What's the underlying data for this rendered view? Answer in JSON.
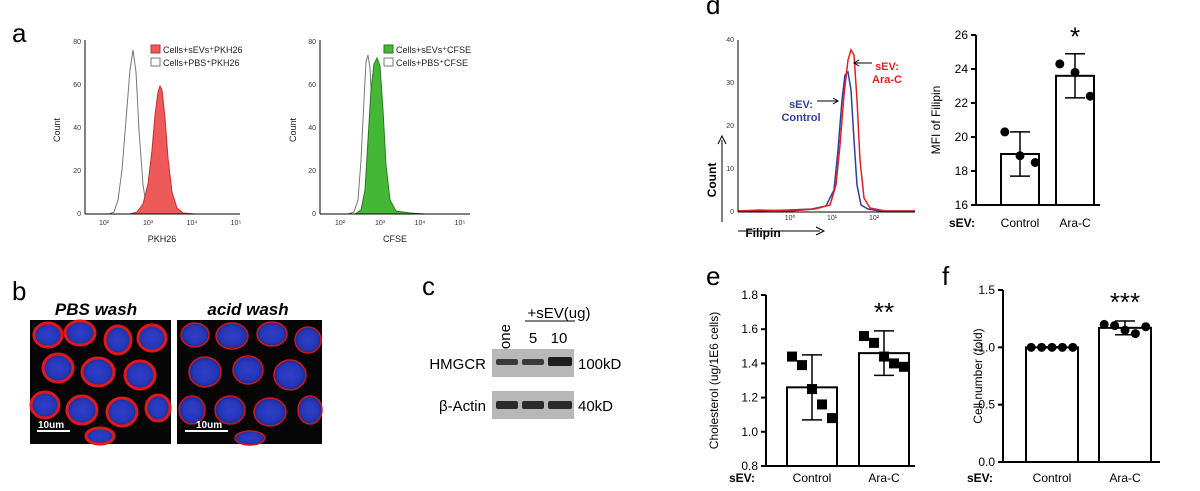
{
  "panels": {
    "a": "a",
    "b": "b",
    "c": "c",
    "d": "d",
    "e": "e",
    "f": "f"
  },
  "panel_a1": {
    "legend": [
      "Cells+sEVs⁺PKH26",
      "Cells+PBS⁺PKH26"
    ],
    "ylabel": "Count",
    "xlabel": "PKH26",
    "yticks": [
      "0",
      "20",
      "40",
      "60",
      "80"
    ],
    "xticks": [
      "10²",
      "10³",
      "10⁴",
      "10⁵"
    ],
    "colors": {
      "fill": "#ee5a5a",
      "edge": "#c23030"
    }
  },
  "panel_a2": {
    "legend": [
      "Cells+sEVs⁺CFSE",
      "Cells+PBS⁺CFSE"
    ],
    "ylabel": "Count",
    "xlabel": "CFSE",
    "yticks": [
      "0",
      "20",
      "40",
      "60",
      "80"
    ],
    "xticks": [
      "10²",
      "10³",
      "10⁴",
      "10⁵"
    ],
    "colors": {
      "fill": "#44b836",
      "edge": "#2a7a22"
    }
  },
  "panel_b": {
    "left_title": "PBS wash",
    "right_title": "acid wash",
    "scale_left": "10um",
    "scale_right": "10um"
  },
  "panel_c": {
    "lane_labels": [
      "None",
      "+sEV(ug)",
      "5",
      "10"
    ],
    "rows": [
      {
        "protein": "HMGCR",
        "size": "100kD"
      },
      {
        "protein": "β-Actin",
        "size": "40kD"
      }
    ]
  },
  "panel_d_hist": {
    "ylabel": "Count",
    "xlabel": "Filipin",
    "yticks": [
      "0",
      "10",
      "20",
      "30",
      "40"
    ],
    "xticks": [
      "10⁰",
      "10¹",
      "10²"
    ],
    "label_control": [
      "sEV:",
      "Control"
    ],
    "label_arac": [
      "sEV:",
      "Ara-C"
    ],
    "colors": {
      "control": "#2e3fa3",
      "arac": "#e02020"
    }
  },
  "chart_data": [
    {
      "id": "d_bar",
      "type": "bar",
      "title": "",
      "xlabel": "",
      "ylabel": "MFI of Filipin",
      "axis_prefix": "sEV:",
      "categories": [
        "Control",
        "Ara-C"
      ],
      "values": [
        19.0,
        23.6
      ],
      "error": [
        1.3,
        1.3
      ],
      "points": [
        [
          20.3,
          18.9,
          18.5
        ],
        [
          24.3,
          23.8,
          22.4
        ]
      ],
      "ylim": [
        16,
        26
      ],
      "yticks": [
        "16",
        "18",
        "20",
        "22",
        "24",
        "26"
      ],
      "significance": "*"
    },
    {
      "id": "e_bar",
      "type": "bar",
      "title": "",
      "xlabel": "",
      "ylabel": "Cholesterol (ug/1E6 cells)",
      "axis_prefix": "sEV:",
      "categories": [
        "Control",
        "Ara-C"
      ],
      "values": [
        1.26,
        1.46
      ],
      "error": [
        0.19,
        0.13
      ],
      "points": [
        [
          1.44,
          1.39,
          1.25,
          1.16,
          1.08
        ],
        [
          1.56,
          1.52,
          1.44,
          1.4,
          1.38
        ]
      ],
      "ylim": [
        0.8,
        1.8
      ],
      "yticks": [
        "0.8",
        "1.0",
        "1.2",
        "1.4",
        "1.6",
        "1.8"
      ],
      "significance": "**"
    },
    {
      "id": "f_bar",
      "type": "bar",
      "title": "",
      "xlabel": "",
      "ylabel": "Cell number (fold)",
      "axis_prefix": "sEV:",
      "categories": [
        "Control",
        "Ara-C"
      ],
      "values": [
        1.0,
        1.17
      ],
      "error": [
        0.005,
        0.06
      ],
      "points": [
        [
          1.0,
          1.0,
          1.0,
          1.0,
          1.0
        ],
        [
          1.2,
          1.19,
          1.15,
          1.12,
          1.18
        ]
      ],
      "ylim": [
        0.0,
        1.5
      ],
      "yticks": [
        "0.0",
        "0.5",
        "1.0",
        "1.5"
      ],
      "significance": "***"
    }
  ]
}
